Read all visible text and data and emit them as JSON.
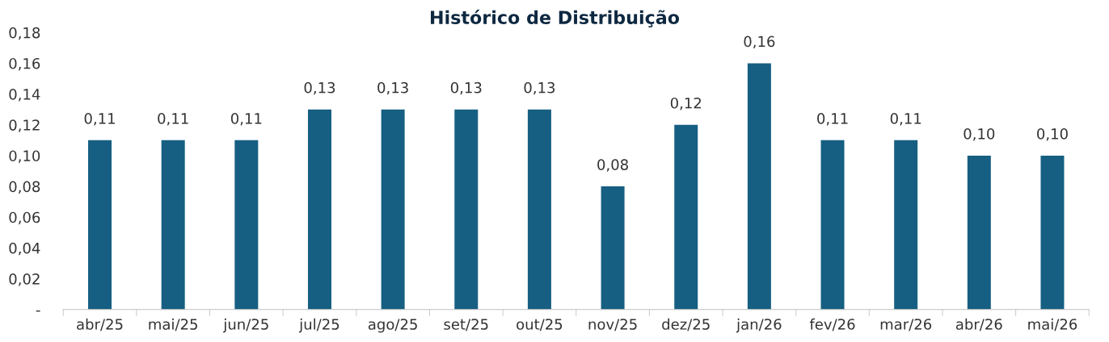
{
  "chart_data": {
    "type": "bar",
    "title": "Histórico de Distribuição",
    "categories": [
      "abr/25",
      "mai/25",
      "jun/25",
      "jul/25",
      "ago/25",
      "set/25",
      "out/25",
      "nov/25",
      "dez/25",
      "jan/26",
      "fev/26",
      "mar/26",
      "abr/26",
      "mai/26"
    ],
    "values": [
      0.11,
      0.11,
      0.11,
      0.13,
      0.13,
      0.13,
      0.13,
      0.08,
      0.12,
      0.16,
      0.11,
      0.11,
      0.1,
      0.1
    ],
    "value_labels": [
      "0,11",
      "0,11",
      "0,11",
      "0,13",
      "0,13",
      "0,13",
      "0,13",
      "0,08",
      "0,12",
      "0,16",
      "0,11",
      "0,11",
      "0,10",
      "0,10"
    ],
    "color": "#165f82",
    "ylim": [
      0,
      0.18
    ],
    "yticks": [
      {
        "value": 0,
        "label": "-"
      },
      {
        "value": 0.02,
        "label": "0,02"
      },
      {
        "value": 0.04,
        "label": "0,04"
      },
      {
        "value": 0.06,
        "label": "0,06"
      },
      {
        "value": 0.08,
        "label": "0,08"
      },
      {
        "value": 0.1,
        "label": "0,10"
      },
      {
        "value": 0.12,
        "label": "0,12"
      },
      {
        "value": 0.14,
        "label": "0,14"
      },
      {
        "value": 0.16,
        "label": "0,16"
      },
      {
        "value": 0.18,
        "label": "0,18"
      }
    ],
    "grid": false,
    "legend": false
  }
}
